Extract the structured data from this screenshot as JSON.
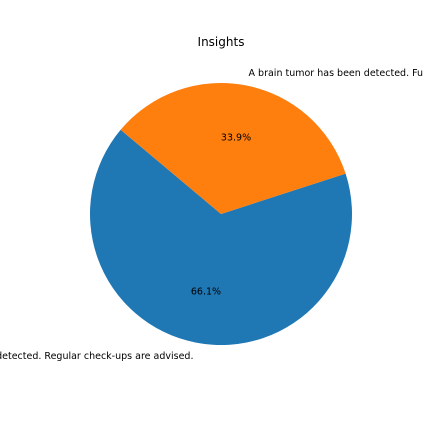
{
  "chart_data": {
    "type": "pie",
    "title": "Insights",
    "labels": [
      "No tumor detected. Regular check-ups are advised.",
      "A brain tumor has been detected. Fu"
    ],
    "values": [
      66.1,
      33.9
    ],
    "percent_labels": [
      "66.1%",
      "33.9%"
    ],
    "colors": [
      "#1f77b4",
      "#ff7f0e"
    ]
  }
}
